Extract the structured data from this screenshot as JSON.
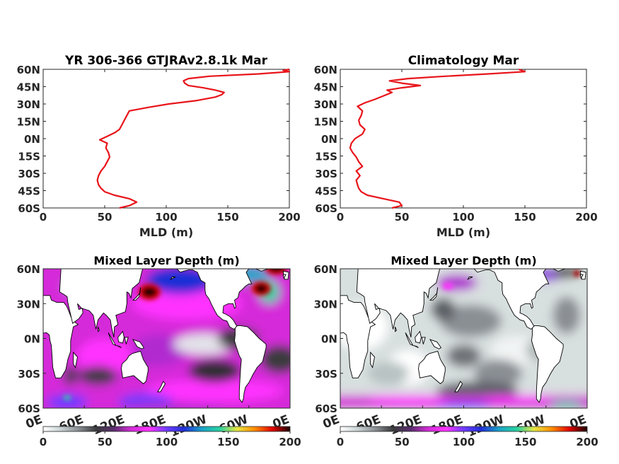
{
  "colors": {
    "profile_line": "#e8141a"
  },
  "colormap": [
    "#ffffff",
    "#c9d3d3",
    "#8a8f94",
    "#3a3a3c",
    "#5a2d6e",
    "#d52bd9",
    "#ff33ff",
    "#6f3bff",
    "#1f2fd6",
    "#1aa3c8",
    "#27d0a0",
    "#e6e640",
    "#ff8c00",
    "#e00000",
    "#1a0000"
  ],
  "chart_data": [
    {
      "type": "line",
      "title": "YR 306-366 GTJRAv2.8.1k Mar",
      "xlabel": "MLD (m)",
      "ylabel": "",
      "xlim": [
        0,
        200
      ],
      "ylim": [
        -60,
        60
      ],
      "xticks": [
        "0",
        "50",
        "100",
        "150",
        "200"
      ],
      "yticks": [
        "60N",
        "45N",
        "30N",
        "15N",
        "0N",
        "15S",
        "30S",
        "45S",
        "60S"
      ],
      "series": [
        {
          "lat": [
            -60,
            -58,
            -55,
            -52,
            -49,
            -46,
            -43,
            -40,
            -36,
            -32,
            -28,
            -24,
            -20,
            -16,
            -12,
            -8,
            -4,
            -1,
            2,
            5,
            8,
            12,
            16,
            20,
            24,
            27,
            30,
            33,
            36,
            38,
            40,
            42,
            44,
            46,
            48,
            50,
            52,
            54,
            56,
            58,
            59,
            60
          ],
          "mld": [
            62,
            70,
            76,
            70,
            58,
            50,
            47,
            45,
            44,
            45,
            47,
            50,
            52,
            54,
            53,
            51,
            52,
            46,
            52,
            58,
            62,
            64,
            66,
            68,
            70,
            85,
            102,
            125,
            140,
            145,
            147,
            140,
            130,
            118,
            115,
            114,
            118,
            135,
            175,
            200,
            195,
            200
          ]
        }
      ]
    },
    {
      "type": "line",
      "title": "Climatology Mar",
      "xlabel": "MLD (m)",
      "ylabel": "",
      "xlim": [
        0,
        200
      ],
      "ylim": [
        -60,
        60
      ],
      "xticks": [
        "0",
        "50",
        "100",
        "150",
        "200"
      ],
      "yticks": [
        "60N",
        "45N",
        "30N",
        "15N",
        "0N",
        "15S",
        "30S",
        "45S",
        "60S"
      ],
      "series": [
        {
          "lat": [
            -60,
            -58,
            -55,
            -52,
            -49,
            -46,
            -43,
            -40,
            -36,
            -32,
            -28,
            -24,
            -20,
            -16,
            -12,
            -8,
            -4,
            0,
            4,
            8,
            12,
            16,
            20,
            24,
            28,
            31,
            34,
            37,
            40,
            42,
            44,
            46,
            48,
            50,
            52,
            54,
            56,
            58,
            60
          ],
          "mld": [
            42,
            50,
            48,
            35,
            22,
            17,
            15,
            14,
            13,
            16,
            13,
            18,
            15,
            13,
            10,
            8,
            9,
            12,
            18,
            20,
            16,
            15,
            17,
            18,
            14,
            20,
            28,
            35,
            42,
            38,
            50,
            65,
            50,
            40,
            55,
            85,
            120,
            150,
            145
          ]
        }
      ]
    },
    {
      "type": "heatmap",
      "title": "Mixed Layer Depth (m)",
      "x_ticks": [
        "0E",
        "60E",
        "120E",
        "180E",
        "120W",
        "60W",
        "0E"
      ],
      "y_ticks": [
        "60N",
        "30N",
        "0N",
        "30S",
        "60S"
      ],
      "colorbar_ticks": [
        "0",
        "50",
        "100",
        "150",
        "200"
      ],
      "colorbar_range": [
        0,
        200
      ]
    },
    {
      "type": "heatmap",
      "title": "Mixed Layer Depth (m)",
      "x_ticks": [
        "0E",
        "60E",
        "120E",
        "180E",
        "120W",
        "60W",
        "0E"
      ],
      "y_ticks": [
        "60N",
        "30N",
        "0N",
        "30S",
        "60S"
      ],
      "colorbar_ticks": [
        "0",
        "50",
        "100",
        "150",
        "200"
      ],
      "colorbar_range": [
        0,
        200
      ]
    }
  ]
}
